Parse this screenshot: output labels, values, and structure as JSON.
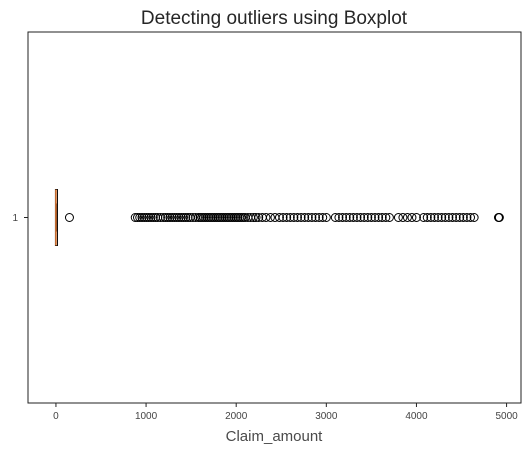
{
  "chart_data": {
    "type": "boxplot",
    "orientation": "horizontal",
    "title": "Detecting outliers using Boxplot",
    "xlabel": "Claim_amount",
    "ylabel": "",
    "xlim": [
      -310,
      5160
    ],
    "xticks": [
      0,
      1000,
      2000,
      3000,
      4000,
      5000
    ],
    "xtick_labels": [
      "0",
      "1000",
      "2000",
      "3000",
      "4000",
      "5000"
    ],
    "categories": [
      "1"
    ],
    "box": {
      "whislo": 0,
      "q1": 0,
      "median": 0,
      "q3": 0,
      "whishi": 8
    },
    "grid": false,
    "colors": {
      "median": "#e07b39",
      "outlier_edge": "#000000",
      "box": "#000000"
    },
    "outliers": [
      150,
      880,
      905,
      930,
      955,
      980,
      1005,
      1030,
      1055,
      1080,
      1105,
      1130,
      1160,
      1190,
      1215,
      1240,
      1265,
      1290,
      1315,
      1340,
      1365,
      1390,
      1415,
      1440,
      1465,
      1490,
      1520,
      1550,
      1580,
      1600,
      1620,
      1640,
      1660,
      1680,
      1700,
      1720,
      1740,
      1760,
      1780,
      1800,
      1820,
      1840,
      1860,
      1880,
      1900,
      1920,
      1940,
      1960,
      1980,
      2000,
      2020,
      2040,
      2060,
      2080,
      2100,
      2130,
      2160,
      2190,
      2220,
      2250,
      2290,
      2330,
      2380,
      2430,
      2480,
      2520,
      2560,
      2600,
      2640,
      2680,
      2720,
      2760,
      2800,
      2840,
      2880,
      2920,
      2960,
      3000,
      3100,
      3140,
      3180,
      3220,
      3260,
      3300,
      3340,
      3380,
      3420,
      3460,
      3500,
      3540,
      3580,
      3620,
      3660,
      3700,
      3800,
      3850,
      3900,
      3950,
      4000,
      4080,
      4120,
      4160,
      4200,
      4240,
      4280,
      4320,
      4360,
      4400,
      4440,
      4480,
      4520,
      4560,
      4600,
      4640,
      4910,
      4915,
      4920
    ]
  }
}
